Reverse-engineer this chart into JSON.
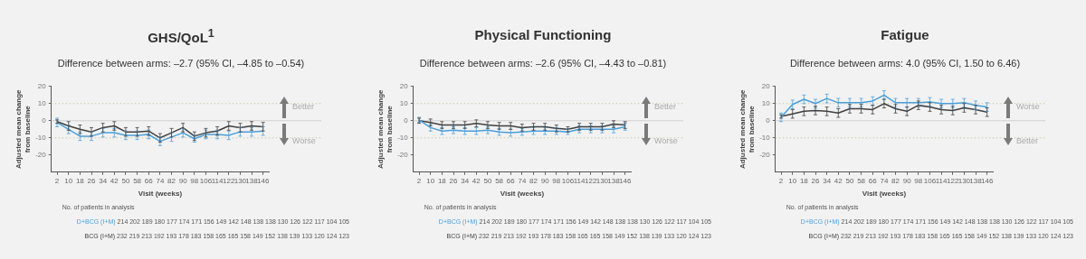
{
  "chart_data": [
    {
      "type": "line",
      "title": "GHS/QoL$^{1}$",
      "subtitle": "Difference between arms: –2.7 (95% CI, –4.85 to –0.54)",
      "xlabel": "Visit (weeks)",
      "ylabel": "Adjusted mean change\nfrom baseline",
      "categories": [
        "2",
        "10",
        "18",
        "26",
        "34",
        "42",
        "50",
        "58",
        "66",
        "74",
        "82",
        "90",
        "98",
        "106",
        "114",
        "122",
        "130",
        "138",
        "146"
      ],
      "ylim": [
        -30,
        20
      ],
      "yticks": [
        -20,
        -10,
        0,
        10,
        20
      ],
      "grid": false,
      "legend": false,
      "marker": "none",
      "line_style": "solid",
      "ref_lines": [
        {
          "axis": "y",
          "value": 10,
          "color": "#c9c9a3",
          "line_style": "dotted"
        },
        {
          "axis": "y",
          "value": 0,
          "color": "#cfcfcf",
          "line_style": "solid"
        },
        {
          "axis": "y",
          "value": -10,
          "color": "#c9c9a3",
          "line_style": "dotted"
        }
      ],
      "series": [
        {
          "name": "D+BCG (I+M)",
          "color": "#4a9fdc",
          "values": [
            -1,
            -5,
            -9,
            -9,
            -7,
            -7,
            -8.5,
            -8.5,
            -8,
            -12,
            -9.5,
            -7,
            -10.5,
            -8,
            -8,
            -8.5,
            -6.5,
            -6.5,
            -6
          ],
          "errors": [
            2.5,
            2.5,
            2.5,
            2.5,
            2.5,
            2.5,
            2.5,
            2.5,
            2.5,
            2.5,
            2.5,
            2.5,
            2,
            2.5,
            2.5,
            2.5,
            2.5,
            2.5,
            2.5
          ]
        },
        {
          "name": "BCG (I+M)",
          "color": "#404040",
          "values": [
            -0.5,
            -3,
            -5,
            -6.5,
            -4,
            -3,
            -6.5,
            -6.5,
            -6,
            -10,
            -7,
            -4,
            -9,
            -7,
            -6,
            -3,
            -4,
            -3,
            -3.5
          ],
          "errors": [
            1,
            2.5,
            2.5,
            2.5,
            2.5,
            2.5,
            2.5,
            2.5,
            2.5,
            2.5,
            2.5,
            2.5,
            2.5,
            2.5,
            2.5,
            2.5,
            2.5,
            2.5,
            2.5
          ]
        }
      ],
      "annotations": [
        "Better",
        "Worse",
        "No. of patients in analysis",
        "214 202 189 180 177 174 171 156 149 142 148 138 138 130 126 122 117 104 105",
        "232 219 213 192 193 178 183 158 165 165 158 149 152 138 139 133 120 124 123"
      ]
    },
    {
      "type": "line",
      "title": "Physical Functioning",
      "subtitle": "Difference between arms: –2.6 (95% CI, –4.43 to –0.81)",
      "xlabel": "Visit (weeks)",
      "ylabel": "Adjusted mean change\nfrom baseline",
      "categories": [
        "2",
        "10",
        "18",
        "26",
        "34",
        "42",
        "50",
        "58",
        "66",
        "74",
        "82",
        "90",
        "98",
        "106",
        "114",
        "122",
        "130",
        "138",
        "146"
      ],
      "ylim": [
        -30,
        20
      ],
      "yticks": [
        -20,
        -10,
        0,
        10,
        20
      ],
      "grid": false,
      "legend": false,
      "marker": "none",
      "line_style": "solid",
      "ref_lines": [
        {
          "axis": "y",
          "value": 10,
          "color": "#c9c9a3",
          "line_style": "dotted"
        },
        {
          "axis": "y",
          "value": 0,
          "color": "#cfcfcf",
          "line_style": "solid"
        },
        {
          "axis": "y",
          "value": -10,
          "color": "#c9c9a3",
          "line_style": "dotted"
        }
      ],
      "series": [
        {
          "name": "D+BCG (I+M)",
          "color": "#4a9fdc",
          "values": [
            0.5,
            -4,
            -6,
            -5.5,
            -6,
            -6,
            -5.5,
            -6.5,
            -7,
            -6.5,
            -6,
            -6,
            -6,
            -6.5,
            -5,
            -5,
            -5,
            -5,
            -3.5
          ],
          "errors": [
            1.5,
            2,
            2,
            2,
            2,
            2,
            2,
            2,
            2,
            2,
            2,
            2,
            2,
            1.5,
            2,
            2,
            2,
            2,
            2
          ]
        },
        {
          "name": "BCG (I+M)",
          "color": "#404040",
          "values": [
            0,
            -1,
            -2.5,
            -2.5,
            -2.5,
            -1.5,
            -2.5,
            -3,
            -3,
            -4,
            -3.5,
            -3.5,
            -4.5,
            -5,
            -3.5,
            -3.5,
            -3.5,
            -2,
            -2.5
          ],
          "errors": [
            1.5,
            2,
            2,
            2,
            2,
            2,
            2,
            2,
            2,
            2,
            2,
            2,
            2,
            1.5,
            2,
            2,
            2,
            2,
            2
          ]
        }
      ],
      "annotations": [
        "Better",
        "Worse",
        "No. of patients in analysis",
        "214 202 189 180 177 174 171 156 149 142 148 138 138 130 126 122 117 104 105",
        "232 219 213 192 193 178 183 158 165 165 158 149 152 138 139 133 120 124 123"
      ]
    },
    {
      "type": "line",
      "title": "Fatigue",
      "subtitle": "Difference between arms: 4.0 (95% CI, 1.50 to 6.46)",
      "xlabel": "Visit (weeks)",
      "ylabel": "Adjusted mean change\nfrom baseline",
      "categories": [
        "2",
        "10",
        "18",
        "26",
        "34",
        "42",
        "50",
        "58",
        "66",
        "74",
        "82",
        "90",
        "98",
        "106",
        "114",
        "122",
        "130",
        "138",
        "146"
      ],
      "ylim": [
        -30,
        20
      ],
      "yticks": [
        -20,
        -10,
        0,
        10,
        20
      ],
      "grid": false,
      "legend": false,
      "marker": "none",
      "line_style": "solid",
      "ref_lines": [
        {
          "axis": "y",
          "value": 10,
          "color": "#c9c9a3",
          "line_style": "dotted"
        },
        {
          "axis": "y",
          "value": 0,
          "color": "#cfcfcf",
          "line_style": "solid"
        },
        {
          "axis": "y",
          "value": -10,
          "color": "#c9c9a3",
          "line_style": "dotted"
        }
      ],
      "series": [
        {
          "name": "D+BCG (I+M)",
          "color": "#4a9fdc",
          "values": [
            2,
            9.5,
            12.5,
            10,
            13,
            10.5,
            10.5,
            10.5,
            11.5,
            15,
            10.5,
            10.5,
            10.5,
            11,
            10,
            10,
            10.5,
            9,
            8
          ],
          "errors": [
            2.5,
            2.5,
            2.5,
            2.5,
            2.5,
            2.5,
            2.5,
            2.5,
            2.5,
            2.5,
            2.5,
            2.5,
            2.5,
            2.5,
            2.5,
            2.5,
            2.5,
            2.5,
            2.5
          ]
        },
        {
          "name": "BCG (I+M)",
          "color": "#404040",
          "values": [
            2.5,
            4,
            5.5,
            6,
            5.5,
            4.5,
            7,
            7,
            6.5,
            10,
            7,
            5.5,
            9,
            8,
            6.5,
            6,
            7.5,
            6.5,
            5
          ],
          "errors": [
            1,
            2.5,
            2.5,
            2.5,
            2.5,
            2.5,
            2.5,
            2.5,
            2.5,
            2.5,
            2.5,
            2.5,
            2.5,
            2.5,
            2.5,
            2.5,
            2.5,
            2.5,
            2.5
          ]
        }
      ],
      "annotations": [
        "Worse",
        "Better",
        "No. of patients in analysis",
        "214 202 189 180 177 174 171 156 149 142 148 138 138 130 126 122 117 104 105",
        "232 219 213 192 193 178 183 158 165 165 158 149 152 138 139 133 120 124 123"
      ]
    }
  ]
}
